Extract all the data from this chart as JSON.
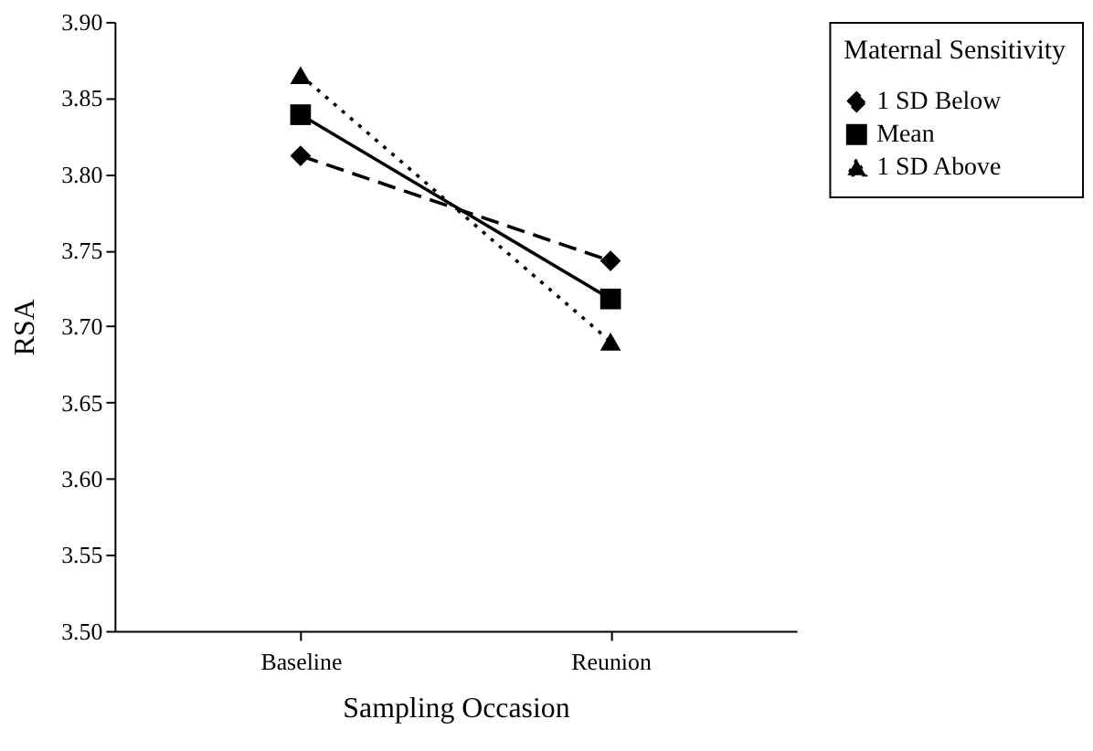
{
  "chart_data": {
    "type": "line",
    "xlabel": "Sampling Occasion",
    "ylabel": "RSA",
    "legend_title": "Maternal Sensitivity",
    "categories": [
      "Baseline",
      "Reunion"
    ],
    "series": [
      {
        "name": "1 SD Below",
        "color": "#000000",
        "values": [
          3.812,
          3.743
        ],
        "marker": "diamond",
        "line_style": "dashed"
      },
      {
        "name": "Mean",
        "color": "#000000",
        "values": [
          3.839,
          3.718
        ],
        "marker": "square",
        "line_style": "solid"
      },
      {
        "name": "1 SD Above",
        "color": "#000000",
        "values": [
          3.865,
          3.69
        ],
        "marker": "triangle",
        "line_style": "dotted"
      }
    ],
    "ylim": [
      3.5,
      3.9
    ],
    "yticks": [
      {
        "value": 3.5,
        "label": "3.50"
      },
      3.55,
      {
        "value": 3.6,
        "label": "3.60"
      },
      3.65,
      {
        "value": 3.7,
        "label": "3.70"
      },
      3.75,
      {
        "value": 3.8,
        "label": "3.80"
      },
      3.85,
      {
        "value": 3.9,
        "label": "3.90"
      }
    ],
    "grid": false,
    "legend": "right"
  }
}
